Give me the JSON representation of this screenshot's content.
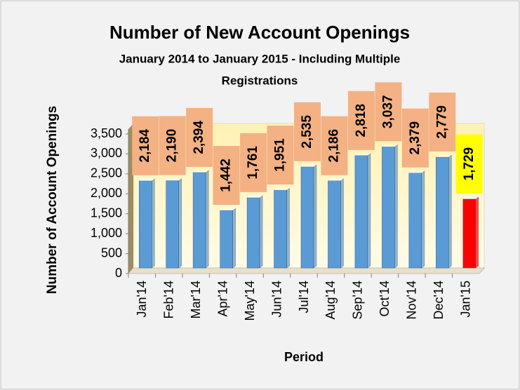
{
  "chart_data": {
    "type": "bar",
    "title": "Number of New Account Openings",
    "subtitle": [
      "January 2014 to January 2015 - Including Multiple",
      "Registrations"
    ],
    "x_label": "Period",
    "y_label": "Number of Account Openings",
    "categories": [
      "Jan'14",
      "Feb'14",
      "Mar'14",
      "Apr'14",
      "May'14",
      "Jun'14",
      "Jul'14",
      "Aug'14",
      "Sep'14",
      "Oct'14",
      "Nov'14",
      "Dec'14",
      "Jan'15"
    ],
    "values": [
      2184,
      2190,
      2394,
      1442,
      1761,
      1951,
      2535,
      2186,
      2818,
      3037,
      2379,
      2779,
      1729
    ],
    "value_labels": [
      "2,184",
      "2,190",
      "2,394",
      "1,442",
      "1,761",
      "1,951",
      "2,535",
      "2,186",
      "2,818",
      "3,037",
      "2,379",
      "2,779",
      "1,729"
    ],
    "colors": [
      "#5b9bd5",
      "#5b9bd5",
      "#5b9bd5",
      "#5b9bd5",
      "#5b9bd5",
      "#5b9bd5",
      "#5b9bd5",
      "#5b9bd5",
      "#5b9bd5",
      "#5b9bd5",
      "#5b9bd5",
      "#5b9bd5",
      "#ff0000"
    ],
    "label_colors": [
      "#f4b183",
      "#f4b183",
      "#f4b183",
      "#f4b183",
      "#f4b183",
      "#f4b183",
      "#f4b183",
      "#f4b183",
      "#f4b183",
      "#f4b183",
      "#f4b183",
      "#f4b183",
      "#ffff00"
    ],
    "ylim": [
      0,
      3500
    ],
    "yticks": [
      0,
      500,
      {
        "value": 1000,
        "label": "1,000"
      },
      {
        "value": 1500,
        "label": "1,500"
      },
      {
        "value": 2000,
        "label": "2,000"
      },
      {
        "value": 2500,
        "label": "2,500"
      },
      {
        "value": 3000,
        "label": "3,000"
      },
      {
        "value": 3500,
        "label": "3,500"
      }
    ],
    "grid": false
  }
}
